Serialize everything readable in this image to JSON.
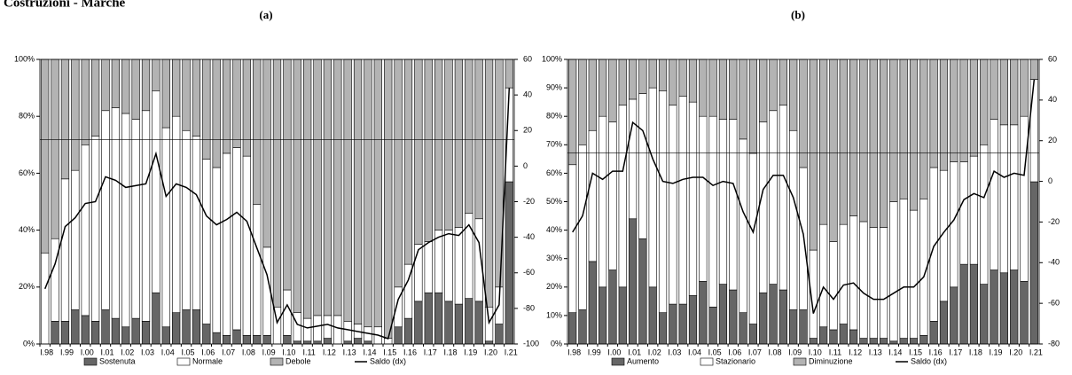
{
  "title": "Costruzioni - Marche",
  "chart_data": [
    {
      "type": "bar",
      "stacked": true,
      "title": "(a)",
      "categories": [
        "I.98",
        null,
        "I.99",
        null,
        "I.00",
        null,
        "I.01",
        null,
        "I.02",
        null,
        "I.03",
        null,
        "I.04",
        null,
        "I.05",
        null,
        "I.06",
        null,
        "I.07",
        null,
        "I.08",
        null,
        "I.09",
        null,
        "I.10",
        null,
        "I.11",
        null,
        "I.12",
        null,
        "I.13",
        null,
        "I.14",
        null,
        "I.15",
        null,
        "I.16",
        null,
        "I.17",
        null,
        "I.18",
        null,
        "I.19",
        null,
        "I.20",
        null,
        "I.21"
      ],
      "series": [
        {
          "name": "Sostenuta",
          "color": "#666666",
          "values": [
            0,
            8,
            8,
            12,
            10,
            8,
            12,
            9,
            6,
            9,
            8,
            18,
            6,
            11,
            12,
            12,
            7,
            4,
            3,
            5,
            3,
            3,
            3,
            0,
            3,
            1,
            1,
            1,
            2,
            0,
            1,
            2,
            1,
            0,
            0,
            6,
            9,
            15,
            18,
            18,
            15,
            14,
            16,
            15,
            1,
            7,
            57
          ]
        },
        {
          "name": "Normale",
          "color": "#ffffff",
          "values": [
            32,
            29,
            50,
            49,
            60,
            65,
            70,
            74,
            75,
            70,
            74,
            71,
            70,
            69,
            63,
            61,
            58,
            58,
            64,
            64,
            63,
            46,
            31,
            13,
            16,
            10,
            8,
            9,
            8,
            10,
            7,
            5,
            5,
            6,
            2,
            14,
            19,
            20,
            18,
            22,
            25,
            27,
            30,
            29,
            12,
            13,
            33
          ]
        },
        {
          "name": "Debole",
          "color": "#b3b3b3",
          "values": [
            68,
            63,
            42,
            39,
            30,
            27,
            18,
            17,
            19,
            21,
            18,
            11,
            24,
            20,
            25,
            27,
            35,
            38,
            33,
            31,
            34,
            51,
            66,
            87,
            81,
            89,
            91,
            90,
            90,
            90,
            92,
            93,
            94,
            94,
            98,
            80,
            72,
            65,
            64,
            60,
            60,
            59,
            54,
            56,
            87,
            80,
            10
          ]
        },
        {
          "name": "Saldo (dx)",
          "type": "line",
          "axis": "y2",
          "color": "#000000",
          "values": [
            -69,
            -55,
            -34,
            -29,
            -21,
            -20,
            -6,
            -8,
            -12,
            -11,
            -10,
            7,
            -17,
            -10,
            -12,
            -16,
            -28,
            -33,
            -30,
            -26,
            -31,
            -46,
            -61,
            -88,
            -78,
            -89,
            -91,
            -90,
            -89,
            -91,
            -92,
            -93,
            -94,
            -95,
            -97,
            -75,
            -64,
            -47,
            -43,
            -40,
            -38,
            -39,
            -33,
            -43,
            -88,
            -78,
            44
          ]
        }
      ],
      "ylim": [
        0,
        100
      ],
      "yticks": [
        {
          "value": 0,
          "label": "0%"
        },
        {
          "value": 20,
          "label": "20%"
        },
        {
          "value": 40,
          "label": "40%"
        },
        {
          "value": 60,
          "label": "60%"
        },
        {
          "value": 80,
          "label": "80%"
        },
        {
          "value": 100,
          "label": "100%"
        }
      ],
      "y2lim": [
        -100,
        60
      ],
      "y2ticks": [
        -100,
        -80,
        -60,
        -40,
        -20,
        0,
        20,
        40,
        60
      ],
      "hline_y2": 15
    },
    {
      "type": "bar",
      "stacked": true,
      "title": "(b)",
      "categories": [
        "I.98",
        null,
        "I.99",
        null,
        "I.00",
        null,
        "I.01",
        null,
        "I.02",
        null,
        "I.03",
        null,
        "I.04",
        null,
        "I.05",
        null,
        "I.06",
        null,
        "I.07",
        null,
        "I.08",
        null,
        "I.09",
        null,
        "I.10",
        null,
        "I.11",
        null,
        "I.12",
        null,
        "I.13",
        null,
        "I.14",
        null,
        "I.15",
        null,
        "I.16",
        null,
        "I.17",
        null,
        "I.18",
        null,
        "I.19",
        null,
        "I.20",
        null,
        "I.21"
      ],
      "series": [
        {
          "name": "Aumento",
          "color": "#666666",
          "values": [
            11,
            12,
            29,
            20,
            26,
            20,
            44,
            37,
            20,
            11,
            14,
            14,
            17,
            22,
            13,
            21,
            19,
            11,
            7,
            18,
            21,
            19,
            12,
            12,
            2,
            6,
            5,
            7,
            5,
            2,
            2,
            2,
            1,
            2,
            2,
            3,
            8,
            15,
            20,
            28,
            28,
            21,
            26,
            25,
            26,
            22,
            57
          ]
        },
        {
          "name": "Stazionario",
          "color": "#ffffff",
          "values": [
            52,
            58,
            46,
            60,
            52,
            64,
            42,
            51,
            70,
            78,
            70,
            73,
            68,
            58,
            67,
            58,
            60,
            61,
            60,
            60,
            61,
            65,
            63,
            50,
            31,
            36,
            31,
            35,
            40,
            41,
            39,
            39,
            49,
            49,
            45,
            48,
            54,
            46,
            44,
            36,
            38,
            49,
            53,
            52,
            51,
            58,
            36
          ]
        },
        {
          "name": "Diminuzione",
          "color": "#b3b3b3",
          "values": [
            37,
            30,
            25,
            20,
            22,
            16,
            14,
            12,
            10,
            11,
            16,
            13,
            15,
            20,
            20,
            21,
            21,
            28,
            33,
            22,
            18,
            16,
            25,
            38,
            67,
            58,
            64,
            58,
            55,
            57,
            59,
            59,
            50,
            49,
            53,
            49,
            38,
            39,
            36,
            36,
            34,
            30,
            21,
            23,
            23,
            20,
            7
          ]
        },
        {
          "name": "Saldo (dx)",
          "type": "line",
          "axis": "y2",
          "color": "#000000",
          "values": [
            -25,
            -17,
            4,
            1,
            5,
            5,
            29,
            25,
            11,
            0,
            -1,
            1,
            2,
            2,
            -2,
            0,
            -1,
            -15,
            -25,
            -4,
            3,
            3,
            -8,
            -26,
            -65,
            -52,
            -58,
            -51,
            -50,
            -55,
            -58,
            -58,
            -55,
            -52,
            -52,
            -47,
            -32,
            -25,
            -19,
            -9,
            -6,
            -8,
            5,
            2,
            4,
            3,
            50
          ]
        }
      ],
      "ylim": [
        0,
        100
      ],
      "yticks": [
        {
          "value": 0,
          "label": "0%"
        },
        {
          "value": 10,
          "label": "10%"
        },
        {
          "value": 20,
          "label": "20%"
        },
        {
          "value": 30,
          "label": "30%"
        },
        {
          "value": 40,
          "label": "40%"
        },
        {
          "value": 50,
          "label": "50%"
        },
        {
          "value": 60,
          "label": "60%"
        },
        {
          "value": 70,
          "label": "70%"
        },
        {
          "value": 80,
          "label": "80%"
        },
        {
          "value": 90,
          "label": "90%"
        },
        {
          "value": 100,
          "label": "100%"
        }
      ],
      "y2lim": [
        -80,
        60
      ],
      "y2ticks": [
        -80,
        -60,
        -40,
        -20,
        0,
        20,
        40,
        60
      ],
      "hline_y2": 14
    }
  ]
}
